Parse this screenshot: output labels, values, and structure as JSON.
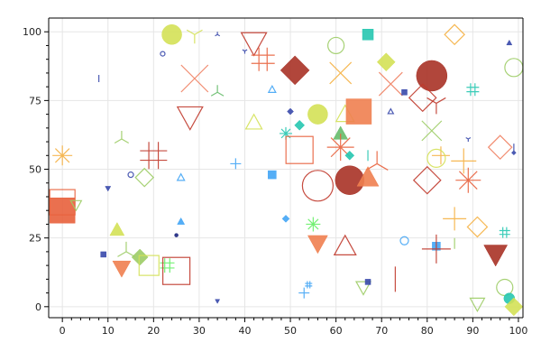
{
  "chart_data": {
    "type": "scatter",
    "title": "",
    "xlabel": "",
    "ylabel": "",
    "xlim": [
      -3,
      101
    ],
    "ylim": [
      -4,
      105
    ],
    "grid": true,
    "legend": "none",
    "x_ticks": [
      0,
      10,
      20,
      30,
      40,
      50,
      60,
      70,
      80,
      90,
      100
    ],
    "y_ticks": [
      0,
      25,
      50,
      75,
      100
    ],
    "x_tick_labels": [
      "0",
      "10",
      "20",
      "30",
      "40",
      "50",
      "60",
      "70",
      "80",
      "90",
      "100"
    ],
    "y_tick_labels": [
      "0",
      "25",
      "50",
      "75",
      "100"
    ],
    "series": [
      {
        "points": [
          {
            "x": 24,
            "y": 99,
            "marker": "circle",
            "color": "#d4e157",
            "style": "filled",
            "size": 22
          },
          {
            "x": 29,
            "y": 99,
            "marker": "tri_down",
            "color": "#d4e157",
            "style": "stroke",
            "size": 20
          },
          {
            "x": 34,
            "y": 99,
            "marker": "tri_up",
            "color": "#3949ab",
            "style": "stroke",
            "size": 6
          },
          {
            "x": 42,
            "y": 96,
            "marker": "triangle_down",
            "color": "#c0392b",
            "style": "outline",
            "size": 28
          },
          {
            "x": 22,
            "y": 92,
            "marker": "circle",
            "color": "#3949ab",
            "style": "outline",
            "size": 5
          },
          {
            "x": 40,
            "y": 93,
            "marker": "tri_down",
            "color": "#3949ab",
            "style": "stroke",
            "size": 6
          },
          {
            "x": 44,
            "y": 90,
            "marker": "plus_grid",
            "color": "#e8603c",
            "style": "stroke",
            "size": 26
          },
          {
            "x": 51,
            "y": 86,
            "marker": "diamond",
            "color": "#a93226",
            "style": "filled",
            "size": 32
          },
          {
            "x": 60,
            "y": 95,
            "marker": "circle",
            "color": "#9ccc65",
            "style": "outline",
            "size": 18
          },
          {
            "x": 67,
            "y": 99,
            "marker": "square",
            "color": "#26c6b0",
            "style": "filled",
            "size": 12
          },
          {
            "x": 71,
            "y": 89,
            "marker": "diamond",
            "color": "#d4e157",
            "style": "filled",
            "size": 20
          },
          {
            "x": 86,
            "y": 99,
            "marker": "diamond",
            "color": "#f5b041",
            "style": "outline",
            "size": 22
          },
          {
            "x": 98,
            "y": 96,
            "marker": "triangle_up",
            "color": "#3949ab",
            "style": "filled",
            "size": 6
          },
          {
            "x": 99,
            "y": 87,
            "marker": "circle",
            "color": "#9ccc65",
            "style": "outline",
            "size": 20
          },
          {
            "x": 81,
            "y": 84,
            "marker": "circle",
            "color": "#a93226",
            "style": "filled",
            "size": 34
          },
          {
            "x": 29,
            "y": 83,
            "marker": "x",
            "color": "#f08060",
            "style": "stroke",
            "size": 30
          },
          {
            "x": 8,
            "y": 83,
            "marker": "vline",
            "color": "#3949ab",
            "style": "stroke",
            "size": 8
          },
          {
            "x": 61,
            "y": 85,
            "marker": "x",
            "color": "#f5b041",
            "style": "stroke",
            "size": 24
          },
          {
            "x": 72,
            "y": 81,
            "marker": "x",
            "color": "#f08060",
            "style": "stroke",
            "size": 26
          },
          {
            "x": 34,
            "y": 78,
            "marker": "tri_up",
            "color": "#66bb6a",
            "style": "stroke",
            "size": 16
          },
          {
            "x": 46,
            "y": 79,
            "marker": "triangle_up",
            "color": "#42a5f5",
            "style": "outline",
            "size": 8
          },
          {
            "x": 79,
            "y": 76,
            "marker": "diamond",
            "color": "#c0392b",
            "style": "outline",
            "size": 30
          },
          {
            "x": 82,
            "y": 74,
            "marker": "tri_down",
            "color": "#c0392b",
            "style": "stroke",
            "size": 24
          },
          {
            "x": 90,
            "y": 79,
            "marker": "plus_grid",
            "color": "#26c6b0",
            "style": "stroke",
            "size": 14
          },
          {
            "x": 75,
            "y": 78,
            "marker": "square",
            "color": "#3949ab",
            "style": "filled",
            "size": 6
          },
          {
            "x": 72,
            "y": 71,
            "marker": "triangle_up",
            "color": "#3949ab",
            "style": "outline",
            "size": 6
          },
          {
            "x": 28,
            "y": 69,
            "marker": "triangle_down",
            "color": "#c0392b",
            "style": "outline",
            "size": 28
          },
          {
            "x": 50,
            "y": 71,
            "marker": "diamond",
            "color": "#3949ab",
            "style": "filled",
            "size": 7
          },
          {
            "x": 56,
            "y": 70,
            "marker": "circle",
            "color": "#d4e157",
            "style": "filled",
            "size": 22
          },
          {
            "x": 62,
            "y": 70,
            "marker": "triangle_up",
            "color": "#d4e157",
            "style": "outline",
            "size": 20
          },
          {
            "x": 65,
            "y": 71,
            "marker": "square",
            "color": "#f08050",
            "style": "filled",
            "size": 28
          },
          {
            "x": 42,
            "y": 67,
            "marker": "triangle_up",
            "color": "#d4e157",
            "style": "outline",
            "size": 18
          },
          {
            "x": 52,
            "y": 66,
            "marker": "diamond",
            "color": "#26c6b0",
            "style": "filled",
            "size": 11
          },
          {
            "x": 49,
            "y": 63,
            "marker": "asterisk",
            "color": "#26c6b0",
            "style": "stroke",
            "size": 14
          },
          {
            "x": 61,
            "y": 63,
            "marker": "triangle_up",
            "color": "#66bb6a",
            "style": "filled",
            "size": 16
          },
          {
            "x": 81,
            "y": 64,
            "marker": "x",
            "color": "#9ccc65",
            "style": "stroke",
            "size": 22
          },
          {
            "x": 89,
            "y": 61,
            "marker": "tri_down",
            "color": "#3949ab",
            "style": "stroke",
            "size": 6
          },
          {
            "x": 13,
            "y": 61,
            "marker": "tri_up",
            "color": "#9ccc65",
            "style": "stroke",
            "size": 18
          },
          {
            "x": 20,
            "y": 55,
            "marker": "plus_grid",
            "color": "#c0392b",
            "style": "stroke",
            "size": 30
          },
          {
            "x": 52,
            "y": 57,
            "marker": "square",
            "color": "#e8603c",
            "style": "outline",
            "size": 30
          },
          {
            "x": 61,
            "y": 58,
            "marker": "asterisk",
            "color": "#e8603c",
            "style": "stroke",
            "size": 30
          },
          {
            "x": 63,
            "y": 55,
            "marker": "diamond",
            "color": "#26c6b0",
            "style": "filled",
            "size": 10
          },
          {
            "x": 67,
            "y": 55,
            "marker": "vline",
            "color": "#26c6b0",
            "style": "stroke",
            "size": 12
          },
          {
            "x": 69,
            "y": 52,
            "marker": "tri_up",
            "color": "#e8603c",
            "style": "stroke",
            "size": 28
          },
          {
            "x": 83,
            "y": 55,
            "marker": "plus",
            "color": "#f5b041",
            "style": "stroke",
            "size": 20
          },
          {
            "x": 82,
            "y": 54,
            "marker": "circle",
            "color": "#d4e157",
            "style": "outline",
            "size": 20
          },
          {
            "x": 88,
            "y": 53,
            "marker": "plus",
            "color": "#f5b041",
            "style": "stroke",
            "size": 28
          },
          {
            "x": 96,
            "y": 58,
            "marker": "diamond",
            "color": "#f08060",
            "style": "outline",
            "size": 26
          },
          {
            "x": 99,
            "y": 58,
            "marker": "vline",
            "color": "#3949ab",
            "style": "stroke",
            "size": 8
          },
          {
            "x": 99,
            "y": 56,
            "marker": "diamond",
            "color": "#3949ab",
            "style": "filled",
            "size": 5
          },
          {
            "x": 0,
            "y": 55,
            "marker": "asterisk",
            "color": "#f5b041",
            "style": "stroke",
            "size": 22
          },
          {
            "x": 38,
            "y": 52,
            "marker": "plus",
            "color": "#42a5f5",
            "style": "stroke",
            "size": 12
          },
          {
            "x": 15,
            "y": 48,
            "marker": "circle",
            "color": "#3949ab",
            "style": "outline",
            "size": 6
          },
          {
            "x": 18,
            "y": 47,
            "marker": "diamond",
            "color": "#9ccc65",
            "style": "outline",
            "size": 20
          },
          {
            "x": 26,
            "y": 47,
            "marker": "triangle_up",
            "color": "#42a5f5",
            "style": "outline",
            "size": 8
          },
          {
            "x": 46,
            "y": 48,
            "marker": "square",
            "color": "#42a5f5",
            "style": "filled",
            "size": 9
          },
          {
            "x": 56,
            "y": 44,
            "marker": "circle",
            "color": "#c0392b",
            "style": "outline",
            "size": 34
          },
          {
            "x": 63,
            "y": 46,
            "marker": "circle",
            "color": "#a93226",
            "style": "filled",
            "size": 32
          },
          {
            "x": 67,
            "y": 47,
            "marker": "triangle_up",
            "color": "#f08050",
            "style": "filled",
            "size": 24
          },
          {
            "x": 80,
            "y": 46,
            "marker": "diamond",
            "color": "#c0392b",
            "style": "outline",
            "size": 30
          },
          {
            "x": 89,
            "y": 46,
            "marker": "asterisk",
            "color": "#e8603c",
            "style": "stroke",
            "size": 28
          },
          {
            "x": 10,
            "y": 43,
            "marker": "triangle_down",
            "color": "#3949ab",
            "style": "filled",
            "size": 6
          },
          {
            "x": 0,
            "y": 38,
            "marker": "square",
            "color": "#e8603c",
            "style": "outline",
            "size": 28
          },
          {
            "x": 0,
            "y": 35,
            "marker": "square",
            "color": "#e8603c",
            "style": "filled",
            "size": 28
          },
          {
            "x": 3,
            "y": 37,
            "marker": "triangle_down",
            "color": "#9ccc65",
            "style": "outline",
            "size": 12
          },
          {
            "x": 49,
            "y": 32,
            "marker": "diamond",
            "color": "#42a5f5",
            "style": "filled",
            "size": 8
          },
          {
            "x": 26,
            "y": 31,
            "marker": "triangle_up",
            "color": "#42a5f5",
            "style": "filled",
            "size": 8
          },
          {
            "x": 55,
            "y": 30,
            "marker": "asterisk",
            "color": "#66ee66",
            "style": "stroke",
            "size": 16
          },
          {
            "x": 86,
            "y": 32,
            "marker": "plus",
            "color": "#f5b041",
            "style": "stroke",
            "size": 26
          },
          {
            "x": 91,
            "y": 29,
            "marker": "diamond",
            "color": "#f5b041",
            "style": "outline",
            "size": 22
          },
          {
            "x": 97,
            "y": 27,
            "marker": "plus_grid",
            "color": "#26c6b0",
            "style": "stroke",
            "size": 12
          },
          {
            "x": 12,
            "y": 28,
            "marker": "triangle_up",
            "color": "#d4e157",
            "style": "filled",
            "size": 16
          },
          {
            "x": 25,
            "y": 26,
            "marker": "circle",
            "color": "#1a237e",
            "style": "filled",
            "size": 4
          },
          {
            "x": 56,
            "y": 23,
            "marker": "triangle_down",
            "color": "#f08050",
            "style": "filled",
            "size": 22
          },
          {
            "x": 62,
            "y": 22,
            "marker": "triangle_up",
            "color": "#c0392b",
            "style": "outline",
            "size": 24
          },
          {
            "x": 75,
            "y": 24,
            "marker": "circle",
            "color": "#42a5f5",
            "style": "outline",
            "size": 9
          },
          {
            "x": 82,
            "y": 22,
            "marker": "square",
            "color": "#42a5f5",
            "style": "filled",
            "size": 9
          },
          {
            "x": 82,
            "y": 21,
            "marker": "plus",
            "color": "#c0392b",
            "style": "stroke",
            "size": 32
          },
          {
            "x": 86,
            "y": 23,
            "marker": "vline",
            "color": "#9ccc65",
            "style": "stroke",
            "size": 12
          },
          {
            "x": 95,
            "y": 19,
            "marker": "triangle_down",
            "color": "#a93226",
            "style": "filled",
            "size": 26
          },
          {
            "x": 9,
            "y": 19,
            "marker": "square",
            "color": "#3949ab",
            "style": "filled",
            "size": 6
          },
          {
            "x": 14,
            "y": 20,
            "marker": "tri_up",
            "color": "#9ccc65",
            "style": "stroke",
            "size": 22
          },
          {
            "x": 13,
            "y": 14,
            "marker": "triangle_down",
            "color": "#f08050",
            "style": "filled",
            "size": 20
          },
          {
            "x": 17,
            "y": 18,
            "marker": "diamond",
            "color": "#9ccc65",
            "style": "filled",
            "size": 18
          },
          {
            "x": 19,
            "y": 15,
            "marker": "square",
            "color": "#d4e157",
            "style": "outline",
            "size": 22
          },
          {
            "x": 23,
            "y": 15,
            "marker": "plus_grid",
            "color": "#66ee66",
            "style": "stroke",
            "size": 16
          },
          {
            "x": 25,
            "y": 13,
            "marker": "square",
            "color": "#c0392b",
            "style": "outline",
            "size": 30
          },
          {
            "x": 54,
            "y": 8,
            "marker": "plus_grid",
            "color": "#42a5f5",
            "style": "stroke",
            "size": 8
          },
          {
            "x": 53,
            "y": 5,
            "marker": "plus",
            "color": "#42a5f5",
            "style": "stroke",
            "size": 12
          },
          {
            "x": 66,
            "y": 7,
            "marker": "triangle_down",
            "color": "#9ccc65",
            "style": "outline",
            "size": 16
          },
          {
            "x": 67,
            "y": 9,
            "marker": "square",
            "color": "#3949ab",
            "style": "filled",
            "size": 6
          },
          {
            "x": 73,
            "y": 10,
            "marker": "vline",
            "color": "#c0392b",
            "style": "stroke",
            "size": 28
          },
          {
            "x": 34,
            "y": 2,
            "marker": "triangle_down",
            "color": "#3949ab",
            "style": "filled",
            "size": 5
          },
          {
            "x": 97,
            "y": 7,
            "marker": "circle",
            "color": "#9ccc65",
            "style": "outline",
            "size": 18
          },
          {
            "x": 91,
            "y": 1,
            "marker": "triangle_down",
            "color": "#9ccc65",
            "style": "outline",
            "size": 16
          },
          {
            "x": 98,
            "y": 3,
            "marker": "circle",
            "color": "#26c6b0",
            "style": "filled",
            "size": 12
          },
          {
            "x": 99,
            "y": 0,
            "marker": "diamond",
            "color": "#d4e157",
            "style": "filled",
            "size": 20
          }
        ]
      }
    ]
  }
}
